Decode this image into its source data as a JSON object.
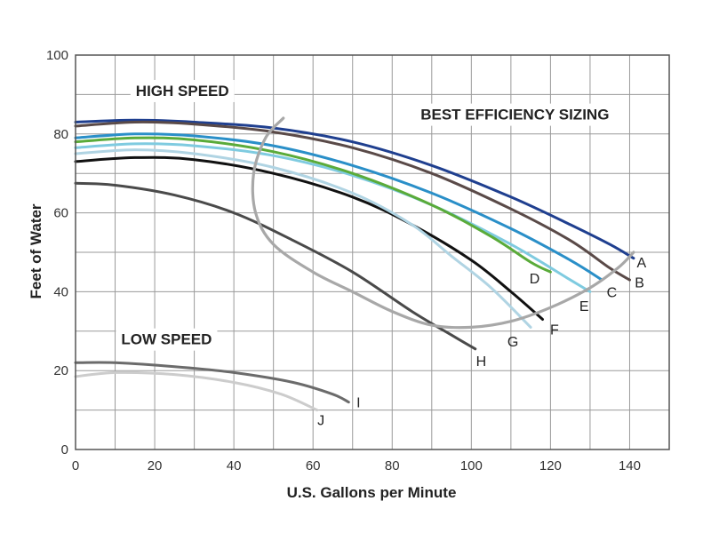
{
  "chart_data": {
    "type": "line",
    "xlabel": "U.S. Gallons per Minute",
    "ylabel": "Feet of Water",
    "xlim": [
      0,
      150
    ],
    "ylim": [
      0,
      100
    ],
    "x_ticks": [
      0,
      20,
      40,
      60,
      80,
      100,
      120,
      140
    ],
    "y_ticks": [
      0,
      20,
      40,
      60,
      80,
      100
    ],
    "grid": true,
    "annotations": [
      {
        "text": "HIGH SPEED",
        "x": 27,
        "y": 91
      },
      {
        "text": "BEST EFFICIENCY SIZING",
        "x": 111,
        "y": 85
      },
      {
        "text": "LOW SPEED",
        "x": 23,
        "y": 28
      }
    ],
    "series": [
      {
        "name": "A",
        "color": "#1f3f8f",
        "label_pos": [
          143,
          47.5
        ],
        "points": [
          [
            0,
            83
          ],
          [
            15,
            83.5
          ],
          [
            30,
            83
          ],
          [
            50,
            81.5
          ],
          [
            70,
            78
          ],
          [
            90,
            72
          ],
          [
            110,
            64
          ],
          [
            125,
            57
          ],
          [
            135,
            52
          ],
          [
            141,
            48.5
          ]
        ]
      },
      {
        "name": "B",
        "color": "#5a4a48",
        "label_pos": [
          142.5,
          42.5
        ],
        "points": [
          [
            0,
            82
          ],
          [
            15,
            83
          ],
          [
            30,
            82.5
          ],
          [
            50,
            80.5
          ],
          [
            70,
            76.5
          ],
          [
            90,
            70
          ],
          [
            110,
            61
          ],
          [
            125,
            53
          ],
          [
            135,
            46
          ],
          [
            140,
            43
          ]
        ]
      },
      {
        "name": "C",
        "color": "#2a8fc8",
        "label_pos": [
          135.5,
          40
        ],
        "points": [
          [
            0,
            79
          ],
          [
            15,
            80
          ],
          [
            30,
            79.5
          ],
          [
            50,
            77
          ],
          [
            70,
            72
          ],
          [
            90,
            65
          ],
          [
            110,
            56
          ],
          [
            125,
            48
          ],
          [
            133,
            43
          ]
        ]
      },
      {
        "name": "E",
        "color": "#7fcbe0",
        "label_pos": [
          128.5,
          36.5
        ],
        "points": [
          [
            0,
            76.5
          ],
          [
            15,
            77.5
          ],
          [
            30,
            77
          ],
          [
            50,
            74.5
          ],
          [
            70,
            69.5
          ],
          [
            90,
            62
          ],
          [
            110,
            52
          ],
          [
            125,
            43
          ],
          [
            130,
            40
          ]
        ]
      },
      {
        "name": "D",
        "color": "#5aab3a",
        "label_pos": [
          116,
          43.5
        ],
        "points": [
          [
            0,
            78
          ],
          [
            15,
            79
          ],
          [
            30,
            78.5
          ],
          [
            50,
            75.5
          ],
          [
            70,
            70
          ],
          [
            90,
            62
          ],
          [
            105,
            54
          ],
          [
            115,
            47.5
          ],
          [
            120,
            45
          ]
        ]
      },
      {
        "name": "F",
        "color": "#111111",
        "label_pos": [
          121,
          30.5
        ],
        "points": [
          [
            0,
            73
          ],
          [
            15,
            74
          ],
          [
            30,
            73.5
          ],
          [
            50,
            70
          ],
          [
            70,
            64
          ],
          [
            85,
            57
          ],
          [
            100,
            48
          ],
          [
            110,
            40
          ],
          [
            118,
            33
          ]
        ]
      },
      {
        "name": "G",
        "color": "#b0d4e3",
        "label_pos": [
          110.5,
          27.5
        ],
        "points": [
          [
            0,
            75
          ],
          [
            15,
            76
          ],
          [
            30,
            75
          ],
          [
            50,
            71.5
          ],
          [
            70,
            65
          ],
          [
            85,
            57
          ],
          [
            95,
            49
          ],
          [
            105,
            41
          ],
          [
            115,
            31
          ]
        ]
      },
      {
        "name": "H",
        "color": "#4a4a4a",
        "label_pos": [
          102.5,
          22.5
        ],
        "points": [
          [
            0,
            67.5
          ],
          [
            10,
            67
          ],
          [
            25,
            64.5
          ],
          [
            40,
            60
          ],
          [
            55,
            53
          ],
          [
            70,
            45
          ],
          [
            85,
            35
          ],
          [
            95,
            29
          ],
          [
            101,
            25.5
          ]
        ]
      },
      {
        "name": "I",
        "color": "#6b6b6b",
        "label_pos": [
          71.5,
          12
        ],
        "points": [
          [
            0,
            22
          ],
          [
            10,
            22
          ],
          [
            25,
            21
          ],
          [
            40,
            19.5
          ],
          [
            55,
            17
          ],
          [
            65,
            14
          ],
          [
            69,
            12
          ]
        ]
      },
      {
        "name": "J",
        "color": "#cccccc",
        "label_pos": [
          62,
          7.5
        ],
        "points": [
          [
            0,
            18.5
          ],
          [
            10,
            19.5
          ],
          [
            25,
            19
          ],
          [
            40,
            17
          ],
          [
            52,
            14
          ],
          [
            61,
            10
          ]
        ]
      },
      {
        "name": "",
        "color": "#a8a8a8",
        "label_pos": null,
        "points": [
          [
            52.5,
            84
          ],
          [
            48,
            79
          ],
          [
            45,
            70
          ],
          [
            45.5,
            60
          ],
          [
            50,
            52
          ],
          [
            60,
            45
          ],
          [
            70,
            40
          ],
          [
            80,
            35
          ],
          [
            90,
            31.5
          ],
          [
            100,
            31
          ],
          [
            110,
            32.5
          ],
          [
            120,
            36
          ],
          [
            130,
            41
          ],
          [
            137,
            46
          ],
          [
            141,
            50
          ]
        ]
      }
    ]
  }
}
